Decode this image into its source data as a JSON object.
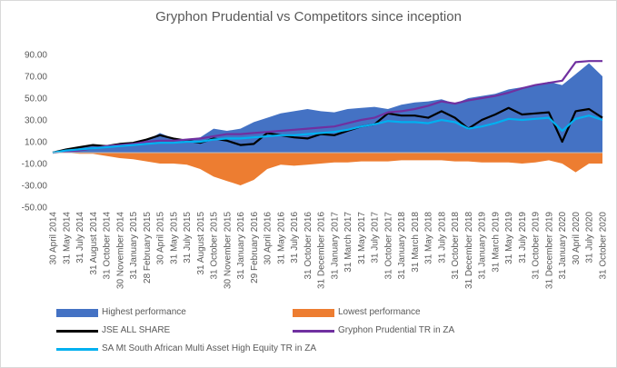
{
  "chart_data": {
    "type": "area",
    "title": "Gryphon Prudential vs Competitors since inception",
    "ylim": [
      -50,
      90
    ],
    "yticks": [
      90,
      70,
      50,
      30,
      10,
      -10,
      -30,
      -50
    ],
    "ytick_labels": [
      "90.00",
      "70.00",
      "50.00",
      "30.00",
      "10.00",
      "-10.00",
      "-30.00",
      "-50.00"
    ],
    "x": [
      "30 April 2014",
      "31 May 2014",
      "31 July 2014",
      "31 August 2014",
      "31 October 2014",
      "30 November 2014",
      "31 January 2015",
      "28 February 2015",
      "30 April 2015",
      "31 May 2015",
      "31 July 2015",
      "31 August 2015",
      "31 October 2015",
      "30 November 2015",
      "31 January 2016",
      "29 February 2016",
      "30 April 2016",
      "31 May 2016",
      "31 July 2016",
      "31 October 2016",
      "31 December 2016",
      "31 January 2017",
      "31 March 2017",
      "31 May 2017",
      "31 July 2017",
      "31 October 2017",
      "31 January 2018",
      "31 March 2018",
      "31 May 2018",
      "31 July 2018",
      "31 October 2018",
      "31 December 2018",
      "31 January 2019",
      "31 March 2019",
      "31 May 2019",
      "31 July 2019",
      "31 October 2019",
      "31 December 2019",
      "31 January 2020",
      "30 April 2020",
      "31 July 2020",
      "31 October 2020"
    ],
    "series": [
      {
        "name": "Highest performance",
        "kind": "area",
        "color": "#4472c4",
        "values": [
          0,
          3,
          5,
          7,
          7,
          8,
          9,
          11,
          18,
          13,
          12,
          14,
          22,
          20,
          22,
          28,
          32,
          36,
          38,
          40,
          38,
          37,
          40,
          41,
          42,
          40,
          44,
          46,
          47,
          49,
          45,
          50,
          52,
          54,
          58,
          60,
          62,
          65,
          62,
          72,
          82,
          70
        ]
      },
      {
        "name": "Lowest performance",
        "kind": "area",
        "color": "#ed7d31",
        "values": [
          0,
          0,
          -1,
          -1,
          -3,
          -5,
          -6,
          -8,
          -10,
          -10,
          -11,
          -15,
          -22,
          -26,
          -30,
          -25,
          -15,
          -11,
          -12,
          -11,
          -10,
          -9,
          -9,
          -8,
          -8,
          -8,
          -7,
          -7,
          -7,
          -7,
          -8,
          -8,
          -9,
          -9,
          -9,
          -10,
          -9,
          -7,
          -10,
          -18,
          -10,
          -10
        ]
      },
      {
        "name": "JSE ALL SHARE",
        "kind": "line",
        "color": "#000000",
        "values": [
          0,
          3,
          5,
          7,
          6,
          8,
          9,
          12,
          16,
          13,
          11,
          9,
          13,
          11,
          7,
          8,
          18,
          16,
          14,
          13,
          17,
          16,
          20,
          24,
          26,
          36,
          34,
          34,
          32,
          38,
          32,
          22,
          30,
          35,
          41,
          35,
          36,
          37,
          10,
          38,
          40,
          32
        ]
      },
      {
        "name": "Gryphon Prudential TR in ZA",
        "kind": "line",
        "color": "#7030a0",
        "values": [
          0,
          1,
          2,
          4,
          6,
          7,
          8,
          10,
          11,
          11,
          12,
          13,
          15,
          17,
          17,
          18,
          19,
          20,
          21,
          22,
          23,
          24,
          27,
          30,
          32,
          37,
          38,
          40,
          43,
          47,
          45,
          48,
          50,
          52,
          55,
          59,
          62,
          64,
          66,
          83,
          84,
          84
        ]
      },
      {
        "name": "SA Mt South African Multi Asset High Equity TR in ZA",
        "kind": "line",
        "color": "#00b0f0",
        "values": [
          0,
          2,
          3,
          4,
          5,
          6,
          7,
          8,
          9,
          9,
          10,
          10,
          12,
          13,
          13,
          14,
          15,
          16,
          16,
          17,
          18,
          19,
          21,
          24,
          26,
          29,
          28,
          28,
          27,
          30,
          28,
          22,
          24,
          27,
          31,
          30,
          31,
          32,
          20,
          31,
          34,
          30
        ]
      }
    ],
    "legend_placement": "bottom",
    "grid": false
  }
}
